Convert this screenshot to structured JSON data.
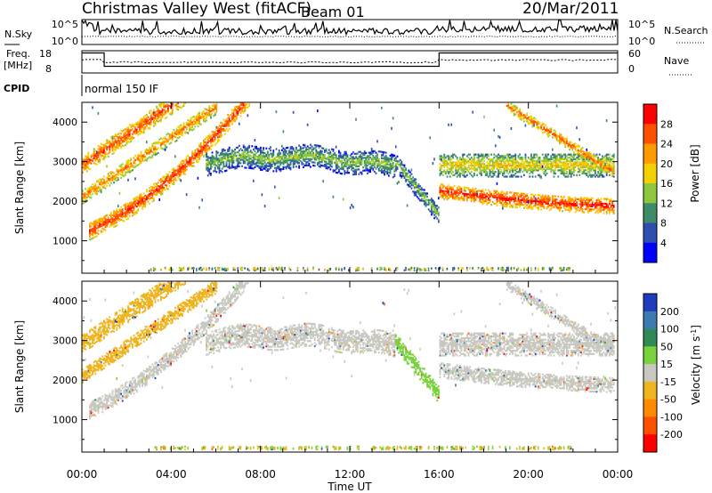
{
  "header": {
    "title": "Christmas Valley West (fitACF)",
    "beam": "Beam 01",
    "date": "20/Mar/2011"
  },
  "sky_panel": {
    "left_label": "N.Sky",
    "right_label": "N.Search",
    "ticks_left": [
      "10^5",
      "10^0"
    ],
    "ticks_right": [
      "10^5",
      "10^0"
    ]
  },
  "freq_panel": {
    "left_label": "Freq.",
    "left_unit": "[MHz]",
    "right_label": "Nave",
    "ticks_left": [
      "18",
      "8"
    ],
    "ticks_right": [
      "60",
      "0"
    ]
  },
  "cpid": {
    "label": "CPID",
    "mode": "normal 150 IF"
  },
  "time_axis": {
    "label": "Time UT",
    "ticks": [
      "00:00",
      "04:00",
      "08:00",
      "12:00",
      "16:00",
      "20:00",
      "00:00"
    ]
  },
  "chart_data": [
    {
      "type": "heatmap",
      "name": "power",
      "xlabel": "Time UT",
      "ylabel": "Slant Range [km]",
      "xlim": [
        0,
        24
      ],
      "ylim": [
        180,
        4500
      ],
      "yticks": [
        "1000",
        "2000",
        "3000",
        "4000"
      ],
      "colorbar_label": "Power [dB]",
      "colorbar_ticks": [
        "4",
        "8",
        "12",
        "16",
        "20",
        "24",
        "28"
      ],
      "colors": [
        "#0000ff",
        "#2f4fb0",
        "#3c8c6a",
        "#8ec63f",
        "#f4d000",
        "#ff9a00",
        "#ff5000",
        "#ff0000"
      ]
    },
    {
      "type": "heatmap",
      "name": "velocity",
      "xlabel": "Time UT",
      "ylabel": "Slant Range [km]",
      "xlim": [
        0,
        24
      ],
      "ylim": [
        180,
        4500
      ],
      "yticks": [
        "1000",
        "2000",
        "3000",
        "4000"
      ],
      "colorbar_label": "Velocity [m s",
      "colorbar_label_sup": "-1",
      "colorbar_label_end": "]",
      "colorbar_ticks": [
        "200",
        "100",
        "50",
        "15",
        "-15",
        "-50",
        "-100",
        "-200"
      ],
      "colors": [
        "#1f3cbe",
        "#3c7ab4",
        "#2e8b57",
        "#78d23c",
        "#c8c8c0",
        "#f0b41e",
        "#ff8c00",
        "#ff5000",
        "#ff0000"
      ]
    }
  ]
}
